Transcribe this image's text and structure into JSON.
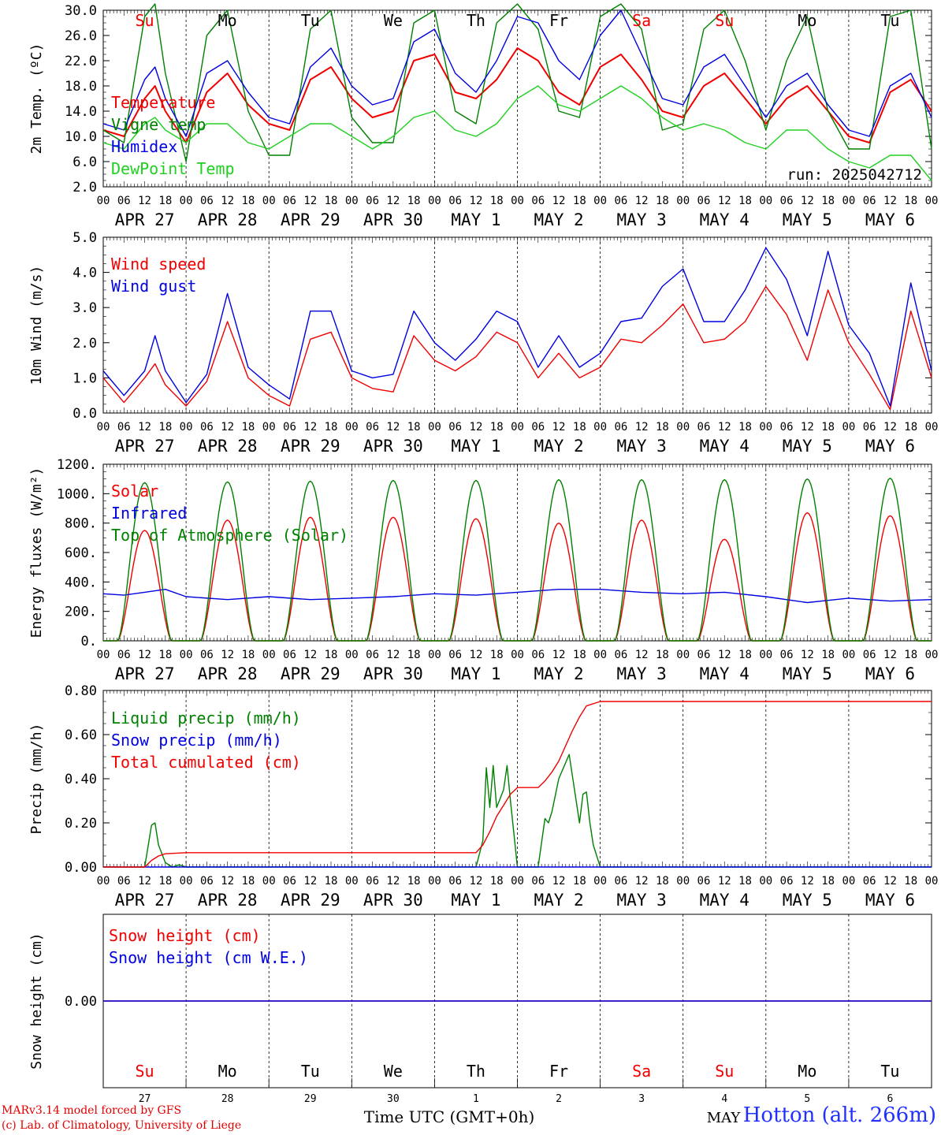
{
  "footer": {
    "model": "MARv3.14 model forced by GFS",
    "copyright": "(c) Lab. of Climatology, University of Liege",
    "xlabel": "Time UTC (GMT+0h)",
    "station": "Hotton (alt. 266m)",
    "month_label": "MAY"
  },
  "colors": {
    "red": "#f00000",
    "blue": "#0000e0",
    "green": "#008000",
    "lightgreen": "#20d020",
    "axis": "#000000",
    "grid": "#000000"
  },
  "days": {
    "names": [
      "Su",
      "Mo",
      "Tu",
      "We",
      "Th",
      "Fr",
      "Sa",
      "Su",
      "Mo",
      "Tu"
    ],
    "weekend_index": [
      0,
      6,
      7
    ],
    "dates": [
      "APR 27",
      "APR 28",
      "APR 29",
      "APR 30",
      "MAY  1",
      "MAY  2",
      "MAY  3",
      "MAY  4",
      "MAY  5",
      "MAY  6"
    ],
    "numbers": [
      "27",
      "28",
      "29",
      "30",
      "1",
      "2",
      "3",
      "4",
      "5",
      "6"
    ],
    "hour_ticks": [
      "00",
      "06",
      "12",
      "18"
    ],
    "end_tick": "00"
  },
  "chart_data": [
    {
      "type": "line",
      "ylabel": "2m Temp. (ºC)",
      "ylim": [
        2.0,
        30.0
      ],
      "yticks": [
        "2.0",
        "6.0",
        "10.0",
        "14.0",
        "18.0",
        "22.0",
        "26.0",
        "30.0"
      ],
      "annotation": "run: 2025042712",
      "x_unit": "hours since APR 27 00 UTC",
      "series": [
        {
          "name": "Temperature",
          "color": "red",
          "x": [
            0,
            6,
            12,
            15,
            18,
            24,
            30,
            36,
            42,
            48,
            54,
            60,
            66,
            72,
            78,
            84,
            90,
            96,
            102,
            108,
            114,
            120,
            126,
            132,
            138,
            144,
            150,
            156,
            162,
            168,
            174,
            180,
            186,
            192,
            198,
            204,
            210,
            216,
            222,
            228,
            234,
            240
          ],
          "y": [
            11,
            10,
            16,
            18,
            14,
            9,
            17,
            20,
            15,
            12,
            11,
            19,
            21,
            16,
            13,
            14,
            22,
            23,
            17,
            16,
            19,
            24,
            22,
            17,
            15,
            21,
            23,
            19,
            14,
            13,
            18,
            20,
            16,
            12,
            16,
            18,
            14,
            10,
            9,
            17,
            19,
            14
          ]
        },
        {
          "name": "Vigne temp",
          "color": "green",
          "x": [
            0,
            6,
            12,
            15,
            18,
            24,
            30,
            36,
            42,
            48,
            54,
            60,
            66,
            72,
            78,
            84,
            90,
            96,
            102,
            108,
            114,
            120,
            126,
            132,
            138,
            144,
            150,
            156,
            162,
            168,
            174,
            180,
            186,
            192,
            198,
            204,
            210,
            216,
            222,
            228,
            234,
            240
          ],
          "y": [
            11,
            9,
            29,
            31,
            20,
            6,
            26,
            30,
            14,
            7,
            7,
            27,
            30,
            13,
            9,
            9,
            28,
            30,
            14,
            12,
            28,
            31,
            27,
            14,
            13,
            29,
            31,
            27,
            11,
            12,
            27,
            30,
            22,
            11,
            22,
            29,
            14,
            8,
            8,
            29,
            30,
            8
          ]
        },
        {
          "name": "Humidex",
          "color": "blue",
          "x": [
            0,
            6,
            12,
            15,
            18,
            24,
            30,
            36,
            42,
            48,
            54,
            60,
            66,
            72,
            78,
            84,
            90,
            96,
            102,
            108,
            114,
            120,
            126,
            132,
            138,
            144,
            150,
            156,
            162,
            168,
            174,
            180,
            186,
            192,
            198,
            204,
            210,
            216,
            222,
            228,
            234,
            240
          ],
          "y": [
            12,
            11,
            19,
            21,
            16,
            10,
            20,
            22,
            17,
            13,
            12,
            21,
            24,
            18,
            15,
            16,
            25,
            27,
            20,
            17,
            22,
            29,
            28,
            22,
            19,
            26,
            30,
            23,
            16,
            15,
            21,
            23,
            18,
            13,
            18,
            20,
            15,
            11,
            10,
            18,
            20,
            13
          ]
        },
        {
          "name": "DewPoint Temp",
          "color": "lightgreen",
          "x": [
            0,
            6,
            12,
            15,
            18,
            24,
            30,
            36,
            42,
            48,
            54,
            60,
            66,
            72,
            78,
            84,
            90,
            96,
            102,
            108,
            114,
            120,
            126,
            132,
            138,
            144,
            150,
            156,
            162,
            168,
            174,
            180,
            186,
            192,
            198,
            204,
            210,
            216,
            222,
            228,
            234,
            240
          ],
          "y": [
            9,
            8,
            12,
            13,
            11,
            9,
            12,
            12,
            9,
            8,
            10,
            12,
            12,
            10,
            8,
            10,
            13,
            14,
            11,
            10,
            12,
            16,
            18,
            15,
            14,
            16,
            18,
            16,
            13,
            11,
            12,
            11,
            9,
            8,
            11,
            11,
            8,
            6,
            5,
            7,
            7,
            3
          ]
        }
      ]
    },
    {
      "type": "line",
      "ylabel": "10m Wind (m/s)",
      "ylim": [
        0.0,
        5.0
      ],
      "yticks": [
        "0.0",
        "1.0",
        "2.0",
        "3.0",
        "4.0",
        "5.0"
      ],
      "x_unit": "hours since APR 27 00 UTC",
      "series": [
        {
          "name": "Wind speed",
          "color": "red",
          "x": [
            0,
            6,
            12,
            15,
            18,
            24,
            30,
            36,
            42,
            48,
            54,
            60,
            66,
            72,
            78,
            84,
            90,
            96,
            102,
            108,
            114,
            120,
            126,
            132,
            138,
            144,
            150,
            156,
            162,
            168,
            174,
            180,
            186,
            192,
            198,
            204,
            210,
            216,
            222,
            228,
            234,
            240
          ],
          "y": [
            1.0,
            0.3,
            1.0,
            1.4,
            0.8,
            0.2,
            0.9,
            2.6,
            1.0,
            0.5,
            0.2,
            2.1,
            2.3,
            1.0,
            0.7,
            0.6,
            2.2,
            1.5,
            1.2,
            1.6,
            2.3,
            2.0,
            1.0,
            1.7,
            1.0,
            1.3,
            2.1,
            2.0,
            2.5,
            3.1,
            2.0,
            2.1,
            2.6,
            3.6,
            2.8,
            1.5,
            3.5,
            2.0,
            1.1,
            0.1,
            2.9,
            1.0
          ]
        },
        {
          "name": "Wind gust",
          "color": "blue",
          "x": [
            0,
            6,
            12,
            15,
            18,
            24,
            30,
            36,
            42,
            48,
            54,
            60,
            66,
            72,
            78,
            84,
            90,
            96,
            102,
            108,
            114,
            120,
            126,
            132,
            138,
            144,
            150,
            156,
            162,
            168,
            174,
            180,
            186,
            192,
            198,
            204,
            210,
            216,
            222,
            228,
            234,
            240
          ],
          "y": [
            1.2,
            0.5,
            1.2,
            2.2,
            1.2,
            0.3,
            1.1,
            3.4,
            1.3,
            0.8,
            0.4,
            2.9,
            2.9,
            1.2,
            1.0,
            1.1,
            2.9,
            2.0,
            1.5,
            2.1,
            2.9,
            2.6,
            1.3,
            2.2,
            1.3,
            1.7,
            2.6,
            2.7,
            3.6,
            4.1,
            2.6,
            2.6,
            3.5,
            4.7,
            3.8,
            2.2,
            4.6,
            2.5,
            1.7,
            0.2,
            3.7,
            1.2
          ]
        }
      ]
    },
    {
      "type": "line",
      "ylabel": "Energy fluxes (W/m²)",
      "ylim": [
        0,
        1200
      ],
      "yticks": [
        "0.",
        "200.",
        "400.",
        "600.",
        "800.",
        "1000.",
        "1200."
      ],
      "x_unit": "hours since APR 27 00 UTC",
      "series": [
        {
          "name": "Solar",
          "color": "red",
          "peaks": [
            750,
            820,
            840,
            840,
            830,
            800,
            820,
            690,
            870,
            850
          ]
        },
        {
          "name": "Infrared",
          "color": "blue",
          "x": [
            0,
            6,
            12,
            18,
            24,
            36,
            48,
            60,
            72,
            84,
            96,
            108,
            120,
            132,
            144,
            156,
            168,
            180,
            192,
            204,
            216,
            228,
            240
          ],
          "y": [
            320,
            310,
            330,
            350,
            300,
            280,
            300,
            280,
            290,
            300,
            320,
            310,
            330,
            350,
            350,
            330,
            320,
            330,
            300,
            260,
            290,
            270,
            280
          ]
        },
        {
          "name": "Top of Atmosphere (Solar)",
          "color": "green",
          "peaks": [
            1075,
            1080,
            1085,
            1090,
            1090,
            1095,
            1095,
            1095,
            1100,
            1105
          ]
        }
      ]
    },
    {
      "type": "line",
      "ylabel": "Precip (mm/h)",
      "ylim": [
        0.0,
        0.8
      ],
      "yticks": [
        "0.00",
        "0.20",
        "0.40",
        "0.60",
        "0.80"
      ],
      "x_unit": "hours since APR 27 00 UTC",
      "series": [
        {
          "name": "Liquid precip (mm/h)",
          "color": "green",
          "x": [
            0,
            9,
            12,
            14,
            15,
            16,
            18,
            20,
            22,
            24,
            108,
            110,
            111,
            112,
            113,
            114,
            116,
            117,
            118,
            120,
            126,
            128,
            129,
            130,
            132,
            135,
            138,
            139,
            140,
            141,
            142,
            144,
            200,
            240
          ],
          "y": [
            0,
            0,
            0.0,
            0.19,
            0.2,
            0.1,
            0.02,
            0.0,
            0.01,
            0,
            0,
            0.12,
            0.45,
            0.27,
            0.46,
            0.27,
            0.35,
            0.46,
            0.3,
            0,
            0,
            0.22,
            0.2,
            0.25,
            0.4,
            0.51,
            0.2,
            0.33,
            0.34,
            0.2,
            0.1,
            0,
            0,
            0
          ]
        },
        {
          "name": "Snow precip (mm/h)",
          "color": "blue",
          "x": [
            0,
            240
          ],
          "y": [
            0,
            0
          ]
        },
        {
          "name": "Total cumulated (cm)",
          "color": "red",
          "x": [
            0,
            12,
            14,
            16,
            18,
            24,
            108,
            110,
            112,
            114,
            116,
            118,
            120,
            126,
            128,
            130,
            132,
            134,
            136,
            138,
            140,
            144,
            240
          ],
          "y": [
            0,
            0,
            0.03,
            0.05,
            0.06,
            0.065,
            0.065,
            0.1,
            0.16,
            0.23,
            0.28,
            0.33,
            0.36,
            0.36,
            0.39,
            0.43,
            0.48,
            0.55,
            0.62,
            0.68,
            0.73,
            0.75,
            0.75
          ]
        }
      ]
    },
    {
      "type": "line",
      "ylabel": "Snow height (cm)",
      "ylim": [
        -1,
        1
      ],
      "yticks": [
        "0.00"
      ],
      "x_unit": "hours since APR 27 00 UTC",
      "series": [
        {
          "name": "Snow height (cm)",
          "color": "red",
          "x": [
            0,
            240
          ],
          "y": [
            0,
            0
          ]
        },
        {
          "name": "Snow height (cm W.E.)",
          "color": "blue",
          "x": [
            0,
            240
          ],
          "y": [
            0,
            0
          ]
        }
      ]
    }
  ]
}
